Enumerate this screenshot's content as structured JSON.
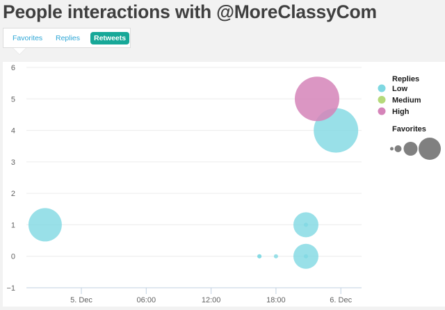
{
  "page": {
    "title": "People interactions with @MoreClassyCom"
  },
  "tabs": [
    {
      "label": "Favorites",
      "active": false
    },
    {
      "label": "Replies",
      "active": false
    },
    {
      "label": "Retweets",
      "active": true
    }
  ],
  "colors": {
    "low": "#7fd8e2",
    "medium": "#b5d97a",
    "high": "#d584b9",
    "size_legend": "#808080",
    "tab_active_bg": "#17a898",
    "tab_text": "#2da6d6"
  },
  "legend": {
    "color_title": "Replies",
    "color_items": [
      {
        "label": "Low",
        "key": "low"
      },
      {
        "label": "Medium",
        "key": "medium"
      },
      {
        "label": "High",
        "key": "high"
      }
    ],
    "size_title": "Favorites",
    "size_items": [
      2.5,
      5,
      10,
      16
    ]
  },
  "chart_data": {
    "type": "scatter",
    "subtype": "bubble",
    "title": "People interactions with @MoreClassyCom",
    "xlabel": "",
    "ylabel": "",
    "x_type": "datetime",
    "x_ticks": [
      "5. Dec",
      "06:00",
      "12:00",
      "18:00",
      "6. Dec"
    ],
    "x_tick_hours": [
      0,
      6,
      12,
      18,
      24
    ],
    "xlim_hours": [
      -5.1,
      25.9
    ],
    "y_ticks": [
      6,
      5,
      4,
      3,
      2,
      1,
      0,
      -1
    ],
    "ylim": [
      -1,
      6
    ],
    "grid": true,
    "legend_position": "right",
    "color_dimension": "Replies",
    "size_dimension": "Favorites",
    "series": [
      {
        "name": "Low",
        "color_key": "low",
        "points": [
          {
            "time": "4. Dec 20:40",
            "x_hours": -3.35,
            "y": 1,
            "size": 24
          },
          {
            "time": "5. Dec 16:28",
            "x_hours": 16.47,
            "y": 0,
            "size": 3
          },
          {
            "time": "5. Dec 16:28",
            "x_hours": 16.47,
            "y": 0,
            "size": 3
          },
          {
            "time": "5. Dec 18:00",
            "x_hours": 18.0,
            "y": 0,
            "size": 3
          },
          {
            "time": "5. Dec 20:46",
            "x_hours": 20.77,
            "y": 0,
            "size": 18
          },
          {
            "time": "5. Dec 20:46",
            "x_hours": 20.77,
            "y": 0,
            "size": 3
          },
          {
            "time": "5. Dec 20:46",
            "x_hours": 20.77,
            "y": 1,
            "size": 18
          },
          {
            "time": "5. Dec 20:46",
            "x_hours": 20.77,
            "y": 1,
            "size": 3
          },
          {
            "time": "5. Dec 23:32",
            "x_hours": 23.55,
            "y": 4,
            "size": 32
          }
        ]
      },
      {
        "name": "Medium",
        "color_key": "medium",
        "points": []
      },
      {
        "name": "High",
        "color_key": "high",
        "points": [
          {
            "time": "5. Dec 21:48",
            "x_hours": 21.8,
            "y": 5,
            "size": 32
          }
        ]
      }
    ]
  }
}
